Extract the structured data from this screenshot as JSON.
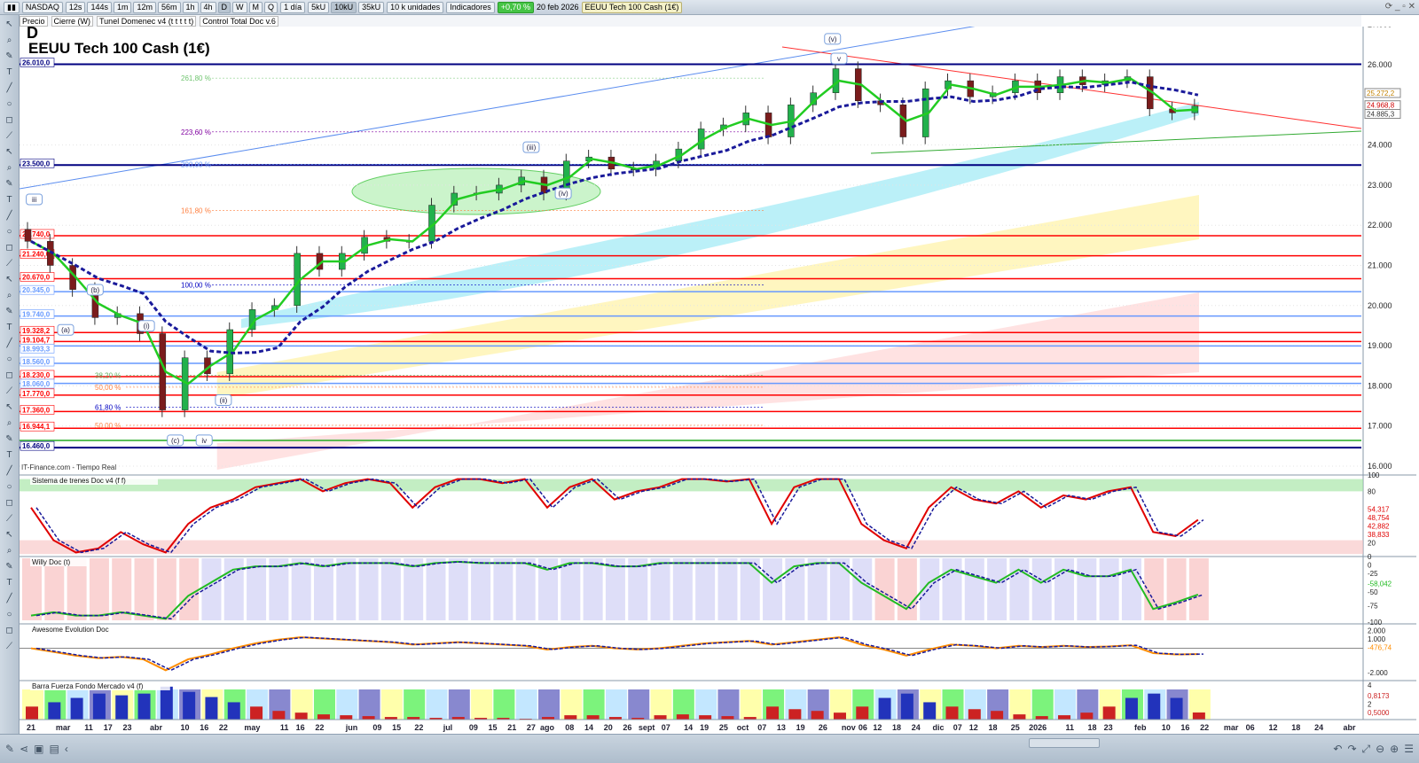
{
  "toolbar": {
    "symbol": "NASDAQ",
    "timeframes": [
      "12s",
      "144s",
      "1m",
      "12m",
      "56m",
      "1h",
      "4h",
      "D",
      "W",
      "M",
      "Q"
    ],
    "active_timeframe": "D",
    "period": "1 día",
    "units_buttons": [
      "5kU",
      "10kU",
      "35kU"
    ],
    "active_unit": "10kU",
    "units_select": "10 k unidades",
    "indicators": "Indicadores",
    "change": "+0,70 %",
    "date": "20 feb 2026",
    "instrument": "EEUU Tech 100 Cash (1€)"
  },
  "subbar": [
    "Precio",
    "Cierre (W)",
    "Tunel Domenec v4 (t t t t t)",
    "Control Total Doc v.6"
  ],
  "colors": {
    "up": "#22b14c",
    "down": "#8b1a1a",
    "accent": "#0000c0",
    "level_red": "#ff0000",
    "level_blue": "#6699ff",
    "fib_green": "#7fd27f"
  },
  "chart_data": {
    "type": "candlestick",
    "title": "D",
    "subtitle": "EEUU Tech 100 Cash (1€)",
    "ylim": [
      16000,
      27000
    ],
    "yticks": [
      "27.000",
      "26.000",
      "24.000",
      "23.000",
      "22.000",
      "21.000",
      "20.000",
      "19.000",
      "18.000",
      "17.000",
      "16.000"
    ],
    "ytick_values": [
      27000,
      26000,
      24000,
      23000,
      22000,
      21000,
      20000,
      19000,
      18000,
      17000,
      16000
    ],
    "price_labels": [
      {
        "v": 25272,
        "text": "25.272,2",
        "color": "#c08000"
      },
      {
        "v": 24969,
        "text": "24.968,8",
        "color": "#d00000"
      },
      {
        "v": 24885,
        "text": "24.885,3",
        "color": "#333333"
      }
    ],
    "closes": [
      [
        "2025-02-21",
        21600
      ],
      [
        "2025-02-28",
        21000
      ],
      [
        "2025-03-07",
        20400
      ],
      [
        "2025-03-14",
        19700
      ],
      [
        "2025-03-21",
        19800
      ],
      [
        "2025-03-28",
        19300
      ],
      [
        "2025-04-04",
        17400
      ],
      [
        "2025-04-11",
        18700
      ],
      [
        "2025-04-18",
        18300
      ],
      [
        "2025-04-25",
        19400
      ],
      [
        "2025-05-02",
        19900
      ],
      [
        "2025-05-09",
        20000
      ],
      [
        "2025-05-16",
        21300
      ],
      [
        "2025-05-23",
        20900
      ],
      [
        "2025-05-30",
        21300
      ],
      [
        "2025-06-06",
        21700
      ],
      [
        "2025-06-13",
        21600
      ],
      [
        "2025-06-20",
        21600
      ],
      [
        "2025-06-27",
        22500
      ],
      [
        "2025-07-04",
        22800
      ],
      [
        "2025-07-11",
        22800
      ],
      [
        "2025-07-18",
        23000
      ],
      [
        "2025-07-25",
        23200
      ],
      [
        "2025-08-01",
        22800
      ],
      [
        "2025-08-08",
        23600
      ],
      [
        "2025-08-15",
        23700
      ],
      [
        "2025-08-22",
        23400
      ],
      [
        "2025-08-29",
        23400
      ],
      [
        "2025-09-05",
        23600
      ],
      [
        "2025-09-12",
        23900
      ],
      [
        "2025-09-19",
        24400
      ],
      [
        "2025-09-26",
        24500
      ],
      [
        "2025-10-03",
        24800
      ],
      [
        "2025-10-10",
        24200
      ],
      [
        "2025-10-17",
        25000
      ],
      [
        "2025-10-24",
        25300
      ],
      [
        "2025-10-31",
        25900
      ],
      [
        "2025-11-07",
        25100
      ],
      [
        "2025-11-14",
        25000
      ],
      [
        "2025-11-21",
        24200
      ],
      [
        "2025-11-28",
        25400
      ],
      [
        "2025-12-05",
        25600
      ],
      [
        "2025-12-12",
        25200
      ],
      [
        "2025-12-19",
        25300
      ],
      [
        "2025-12-26",
        25600
      ],
      [
        "2026-01-02",
        25300
      ],
      [
        "2026-01-09",
        25700
      ],
      [
        "2026-01-16",
        25500
      ],
      [
        "2026-01-23",
        25600
      ],
      [
        "2026-01-30",
        25700
      ],
      [
        "2026-02-06",
        24900
      ],
      [
        "2026-02-13",
        24800
      ],
      [
        "2026-02-20",
        24969
      ]
    ],
    "levels": [
      {
        "v": 26010,
        "text": "26.010,0",
        "color": "#000080"
      },
      {
        "v": 23500,
        "text": "23.500,0",
        "color": "#000080"
      },
      {
        "v": 21740,
        "text": "21.740,0",
        "color": "#ff0000"
      },
      {
        "v": 21240,
        "text": "21.240,0",
        "color": "#ff0000"
      },
      {
        "v": 20670,
        "text": "20.670,0",
        "color": "#ff0000"
      },
      {
        "v": 20345,
        "text": "20.345,0",
        "color": "#6699ff"
      },
      {
        "v": 19740,
        "text": "19.740,0",
        "color": "#6699ff"
      },
      {
        "v": 19328,
        "text": "19.328,2",
        "color": "#ff0000"
      },
      {
        "v": 19105,
        "text": "19.104,7",
        "color": "#ff0000"
      },
      {
        "v": 18993,
        "text": "18.993,3",
        "color": "#6699ff"
      },
      {
        "v": 18560,
        "text": "18.560,0",
        "color": "#6699ff"
      },
      {
        "v": 18230,
        "text": "18.230,0",
        "color": "#ff0000"
      },
      {
        "v": 18060,
        "text": "18.060,0",
        "color": "#6699ff"
      },
      {
        "v": 17770,
        "text": "17.770,0",
        "color": "#ff0000"
      },
      {
        "v": 17360,
        "text": "17.360,0",
        "color": "#ff0000"
      },
      {
        "v": 16944,
        "text": "16.944,1",
        "color": "#ff0000"
      },
      {
        "v": 16640,
        "text": "",
        "color": "#22aa22"
      },
      {
        "v": 16460,
        "text": "16.460,0",
        "color": "#000080"
      }
    ],
    "fib_labels": [
      {
        "v": 25600,
        "text": "261,80 %",
        "color": "#6fc46f"
      },
      {
        "v": 24260,
        "text": "223,60 %",
        "color": "#8000a0"
      },
      {
        "v": 23450,
        "text": "200,00 %",
        "color": "#6699ff"
      },
      {
        "v": 22300,
        "text": "161,80 %",
        "color": "#ff8040"
      },
      {
        "v": 20450,
        "text": "100,00 %",
        "color": "#0000c0"
      },
      {
        "v": 18200,
        "text": "38,20 %",
        "color": "#60b060"
      },
      {
        "v": 17900,
        "text": "50,00 %",
        "color": "#ff8040"
      },
      {
        "v": 17400,
        "text": "61,80 %",
        "color": "#0000c0"
      },
      {
        "v": 16950,
        "text": "50,00 %",
        "color": "#ff8040"
      }
    ],
    "wave_labels": [
      {
        "d": "2025-02-22",
        "v": 22600,
        "text": "iii"
      },
      {
        "d": "2025-03-13",
        "v": 20350,
        "text": "(b)"
      },
      {
        "d": "2025-03-01",
        "v": 19350,
        "text": "(a)"
      },
      {
        "d": "2025-03-29",
        "v": 19450,
        "text": "(i)"
      },
      {
        "d": "2025-04-22",
        "v": 17600,
        "text": "(ii)"
      },
      {
        "d": "2025-04-07",
        "v": 16600,
        "text": "(c)"
      },
      {
        "d": "2025-04-16",
        "v": 16600,
        "text": "iv"
      },
      {
        "d": "2025-07-27",
        "v": 23900,
        "text": "(iii)"
      },
      {
        "d": "2025-08-06",
        "v": 22750,
        "text": "(iv)"
      },
      {
        "d": "2025-10-29",
        "v": 26600,
        "text": "(v)"
      },
      {
        "d": "2025-10-31",
        "v": 27200,
        "text": "v"
      }
    ],
    "xticks": [
      [
        "2025-02-21",
        "21"
      ],
      [
        "2025-03-03",
        "mar"
      ],
      [
        "2025-03-11",
        "11"
      ],
      [
        "2025-03-17",
        "17"
      ],
      [
        "2025-03-23",
        "23"
      ],
      [
        "2025-04-01",
        "abr"
      ],
      [
        "2025-04-10",
        "10"
      ],
      [
        "2025-04-16",
        "16"
      ],
      [
        "2025-04-22",
        "22"
      ],
      [
        "2025-05-01",
        "may"
      ],
      [
        "2025-05-11",
        "11"
      ],
      [
        "2025-05-16",
        "16"
      ],
      [
        "2025-05-22",
        "22"
      ],
      [
        "2025-06-01",
        "jun"
      ],
      [
        "2025-06-09",
        "09"
      ],
      [
        "2025-06-15",
        "15"
      ],
      [
        "2025-06-22",
        "22"
      ],
      [
        "2025-07-01",
        "jul"
      ],
      [
        "2025-07-09",
        "09"
      ],
      [
        "2025-07-15",
        "15"
      ],
      [
        "2025-07-21",
        "21"
      ],
      [
        "2025-07-27",
        "27"
      ],
      [
        "2025-08-01",
        "ago"
      ],
      [
        "2025-08-08",
        "08"
      ],
      [
        "2025-08-14",
        "14"
      ],
      [
        "2025-08-20",
        "20"
      ],
      [
        "2025-08-26",
        "26"
      ],
      [
        "2025-09-01",
        "sept"
      ],
      [
        "2025-09-07",
        "07"
      ],
      [
        "2025-09-14",
        "14"
      ],
      [
        "2025-09-19",
        "19"
      ],
      [
        "2025-09-25",
        "25"
      ],
      [
        "2025-10-01",
        "oct"
      ],
      [
        "2025-10-07",
        "07"
      ],
      [
        "2025-10-13",
        "13"
      ],
      [
        "2025-10-19",
        "19"
      ],
      [
        "2025-10-26",
        "26"
      ],
      [
        "2025-11-03",
        "nov"
      ],
      [
        "2025-11-06",
        "06"
      ],
      [
        "2025-11-12",
        "12"
      ],
      [
        "2025-11-18",
        "18"
      ],
      [
        "2025-11-24",
        "24"
      ],
      [
        "2025-12-01",
        "dic"
      ],
      [
        "2025-12-07",
        "07"
      ],
      [
        "2025-12-12",
        "12"
      ],
      [
        "2025-12-18",
        "18"
      ],
      [
        "2025-12-25",
        "25"
      ],
      [
        "2026-01-01",
        "2026"
      ],
      [
        "2026-01-11",
        "11"
      ],
      [
        "2026-01-18",
        "18"
      ],
      [
        "2026-01-23",
        "23"
      ],
      [
        "2026-02-02",
        "feb"
      ],
      [
        "2026-02-10",
        "10"
      ],
      [
        "2026-02-16",
        "16"
      ],
      [
        "2026-02-22",
        "22"
      ],
      [
        "2026-03-01",
        "mar"
      ],
      [
        "2026-03-06",
        "06"
      ],
      [
        "2026-03-12",
        "12"
      ],
      [
        "2026-03-18",
        "18"
      ],
      [
        "2026-03-24",
        "24"
      ],
      [
        "2026-04-01",
        "abr"
      ]
    ],
    "source": "IT-Finance.com - Tiempo Real",
    "indicators": [
      {
        "name": "Sistema de trenes Doc v4 (f f)",
        "ylim": [
          0,
          100
        ],
        "ticks": [
          "100",
          "80",
          "20",
          "0"
        ],
        "tick_values": [
          100,
          80,
          20,
          0
        ],
        "readouts": [
          "54,317",
          "48,754",
          "42,882",
          "38,833"
        ],
        "color": "#e00000",
        "values": [
          60,
          20,
          5,
          10,
          30,
          15,
          5,
          40,
          60,
          70,
          85,
          90,
          95,
          80,
          90,
          95,
          90,
          60,
          85,
          95,
          95,
          90,
          95,
          60,
          85,
          95,
          70,
          80,
          85,
          95,
          95,
          92,
          95,
          40,
          85,
          95,
          95,
          40,
          20,
          10,
          60,
          85,
          70,
          65,
          80,
          60,
          75,
          70,
          80,
          85,
          30,
          25,
          45
        ]
      },
      {
        "name": "Willy Doc (t)",
        "ylim": [
          -100,
          0
        ],
        "ticks": [
          "0",
          "-25",
          "-50",
          "-75",
          "-100"
        ],
        "tick_values": [
          0,
          -25,
          -50,
          -75,
          -100
        ],
        "readouts": [
          "-58,042"
        ],
        "color": "#22bb22",
        "values": [
          -90,
          -85,
          -90,
          -90,
          -85,
          -90,
          -95,
          -60,
          -40,
          -20,
          -15,
          -15,
          -10,
          -15,
          -10,
          -10,
          -10,
          -15,
          -10,
          -8,
          -10,
          -10,
          -10,
          -20,
          -10,
          -10,
          -15,
          -15,
          -10,
          -10,
          -10,
          -10,
          -10,
          -40,
          -15,
          -10,
          -10,
          -40,
          -60,
          -80,
          -40,
          -20,
          -30,
          -40,
          -20,
          -40,
          -20,
          -30,
          -30,
          -20,
          -80,
          -70,
          -58
        ]
      },
      {
        "name": "Awesome Evolution Doc",
        "ylim": [
          -2500,
          2000
        ],
        "ticks": [
          "2.000",
          "1.000",
          "-2.000"
        ],
        "tick_values": [
          2000,
          1000,
          -2000
        ],
        "readouts": [
          "-476,74"
        ],
        "color": "#ff8c00",
        "values": [
          0,
          -300,
          -600,
          -800,
          -700,
          -900,
          -1800,
          -900,
          -500,
          0,
          400,
          700,
          900,
          800,
          700,
          600,
          500,
          300,
          400,
          500,
          400,
          300,
          200,
          -100,
          100,
          200,
          0,
          -100,
          0,
          200,
          400,
          500,
          600,
          300,
          500,
          700,
          900,
          300,
          -100,
          -600,
          -100,
          300,
          200,
          0,
          200,
          100,
          200,
          100,
          150,
          250,
          -400,
          -500,
          -477
        ]
      },
      {
        "name": "Barra Fuerza Fondo Mercado v4 (f)",
        "ylim": [
          0,
          4.5
        ],
        "ticks": [
          "4",
          "2"
        ],
        "tick_values": [
          4,
          2
        ],
        "readouts": [
          "0,8173",
          "0,5000"
        ],
        "color": "#cc2222",
        "values": [
          1.5,
          2,
          2.5,
          3,
          2.8,
          3,
          3.8,
          3.2,
          2.6,
          2,
          1.5,
          1,
          0.8,
          0.6,
          0.5,
          0.4,
          0.3,
          0.3,
          0.2,
          0.3,
          0.2,
          0.2,
          0.1,
          0.3,
          0.5,
          0.5,
          0.3,
          0.2,
          0.5,
          0.6,
          0.5,
          0.4,
          0.3,
          1.5,
          1.2,
          1,
          0.8,
          1.5,
          2.5,
          3,
          2,
          1.5,
          1.2,
          1,
          0.6,
          0.4,
          0.5,
          0.8,
          1.5,
          2.5,
          3,
          2.5,
          0.8173
        ]
      }
    ]
  }
}
